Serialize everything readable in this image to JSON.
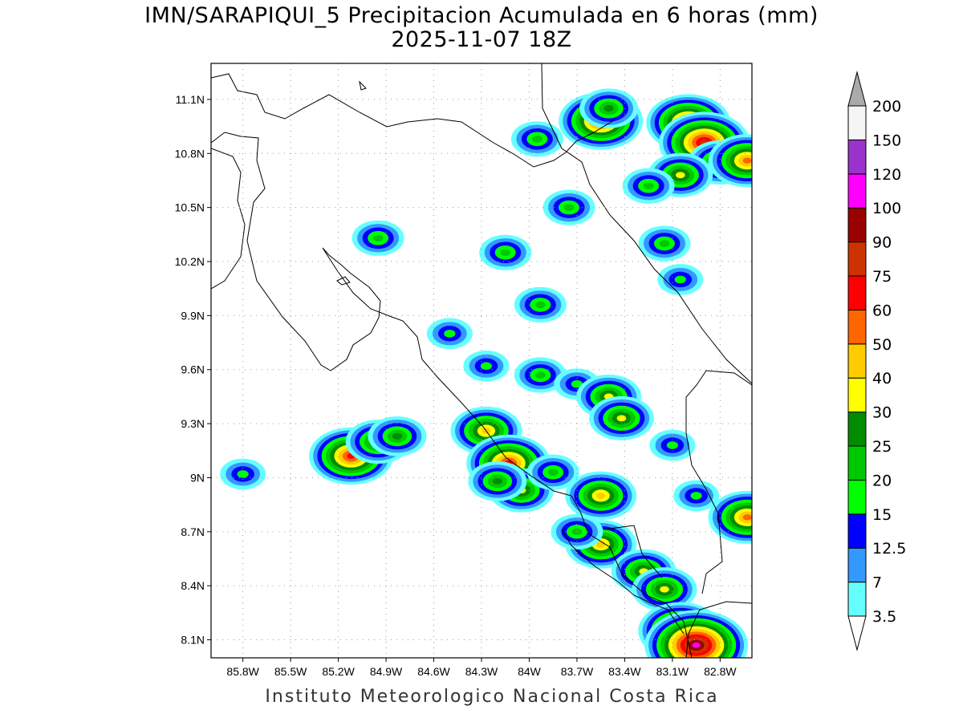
{
  "title": "IMN/SARAPIQUI_5 Precipitacion Acumulada en 6 horas (mm)",
  "subtitle": "2025-11-07 18Z",
  "credit": "Instituto Meteorologico Nacional Costa Rica",
  "map": {
    "lon_range": [
      -86.0,
      -82.6
    ],
    "lat_range": [
      8.0,
      11.3
    ],
    "lat_ticks": [
      {
        "v": 11.1,
        "label": "11.1N"
      },
      {
        "v": 10.8,
        "label": "10.8N"
      },
      {
        "v": 10.5,
        "label": "10.5N"
      },
      {
        "v": 10.2,
        "label": "10.2N"
      },
      {
        "v": 9.9,
        "label": "9.9N"
      },
      {
        "v": 9.6,
        "label": "9.6N"
      },
      {
        "v": 9.3,
        "label": "9.3N"
      },
      {
        "v": 9.0,
        "label": "9N"
      },
      {
        "v": 8.7,
        "label": "8.7N"
      },
      {
        "v": 8.4,
        "label": "8.4N"
      },
      {
        "v": 8.1,
        "label": "8.1N"
      }
    ],
    "lon_ticks": [
      {
        "v": -85.8,
        "label": "85.8W"
      },
      {
        "v": -85.5,
        "label": "85.5W"
      },
      {
        "v": -85.2,
        "label": "85.2W"
      },
      {
        "v": -84.9,
        "label": "84.9W"
      },
      {
        "v": -84.6,
        "label": "84.6W"
      },
      {
        "v": -84.3,
        "label": "84.3W"
      },
      {
        "v": -84.0,
        "label": "84W"
      },
      {
        "v": -83.7,
        "label": "83.7W"
      },
      {
        "v": -83.4,
        "label": "83.4W"
      },
      {
        "v": -83.1,
        "label": "83.1W"
      },
      {
        "v": -82.8,
        "label": "82.8W"
      }
    ],
    "grid": true
  },
  "legend": {
    "levels": [
      {
        "label": "3.5",
        "color": "#66ffff"
      },
      {
        "label": "7",
        "color": "#3399ff"
      },
      {
        "label": "12.5",
        "color": "#0000ff"
      },
      {
        "label": "15",
        "color": "#00ff00"
      },
      {
        "label": "20",
        "color": "#00c800"
      },
      {
        "label": "25",
        "color": "#008c00"
      },
      {
        "label": "30",
        "color": "#ffff00"
      },
      {
        "label": "40",
        "color": "#ffcc00"
      },
      {
        "label": "50",
        "color": "#ff6600"
      },
      {
        "label": "60",
        "color": "#ff0000"
      },
      {
        "label": "75",
        "color": "#cc3300"
      },
      {
        "label": "90",
        "color": "#990000"
      },
      {
        "label": "100",
        "color": "#ff00ff"
      },
      {
        "label": "120",
        "color": "#9933cc"
      },
      {
        "label": "150",
        "color": "#f5f5f5"
      },
      {
        "label": "200",
        "color": "#aaaaaa"
      }
    ]
  },
  "rain_cells": [
    {
      "lon": -83.55,
      "lat": 10.98,
      "mm": 60
    },
    {
      "lon": -83.5,
      "lat": 11.05,
      "mm": 25
    },
    {
      "lon": -83.0,
      "lat": 10.97,
      "mm": 60
    },
    {
      "lon": -82.9,
      "lat": 10.86,
      "mm": 75
    },
    {
      "lon": -82.8,
      "lat": 10.75,
      "mm": 30
    },
    {
      "lon": -82.63,
      "lat": 10.76,
      "mm": 50
    },
    {
      "lon": -83.05,
      "lat": 10.68,
      "mm": 30
    },
    {
      "lon": -83.25,
      "lat": 10.62,
      "mm": 20
    },
    {
      "lon": -83.15,
      "lat": 10.3,
      "mm": 20
    },
    {
      "lon": -83.05,
      "lat": 10.1,
      "mm": 15
    },
    {
      "lon": -83.95,
      "lat": 10.88,
      "mm": 20
    },
    {
      "lon": -83.75,
      "lat": 10.5,
      "mm": 20
    },
    {
      "lon": -84.95,
      "lat": 10.33,
      "mm": 20
    },
    {
      "lon": -84.15,
      "lat": 10.25,
      "mm": 20
    },
    {
      "lon": -83.93,
      "lat": 9.96,
      "mm": 20
    },
    {
      "lon": -84.5,
      "lat": 9.8,
      "mm": 15
    },
    {
      "lon": -84.27,
      "lat": 9.62,
      "mm": 15
    },
    {
      "lon": -83.93,
      "lat": 9.57,
      "mm": 20
    },
    {
      "lon": -83.7,
      "lat": 9.52,
      "mm": 15
    },
    {
      "lon": -83.5,
      "lat": 9.45,
      "mm": 30
    },
    {
      "lon": -83.42,
      "lat": 9.33,
      "mm": 30
    },
    {
      "lon": -83.1,
      "lat": 9.18,
      "mm": 15
    },
    {
      "lon": -85.12,
      "lat": 9.12,
      "mm": 60
    },
    {
      "lon": -84.95,
      "lat": 9.2,
      "mm": 30
    },
    {
      "lon": -84.83,
      "lat": 9.23,
      "mm": 25
    },
    {
      "lon": -85.8,
      "lat": 9.02,
      "mm": 15
    },
    {
      "lon": -84.27,
      "lat": 9.26,
      "mm": 40
    },
    {
      "lon": -84.13,
      "lat": 9.08,
      "mm": 60
    },
    {
      "lon": -84.05,
      "lat": 8.93,
      "mm": 30
    },
    {
      "lon": -84.2,
      "lat": 8.98,
      "mm": 25
    },
    {
      "lon": -83.85,
      "lat": 9.03,
      "mm": 20
    },
    {
      "lon": -83.55,
      "lat": 8.9,
      "mm": 40
    },
    {
      "lon": -83.55,
      "lat": 8.63,
      "mm": 40
    },
    {
      "lon": -83.7,
      "lat": 8.7,
      "mm": 20
    },
    {
      "lon": -83.28,
      "lat": 8.48,
      "mm": 30
    },
    {
      "lon": -83.15,
      "lat": 8.38,
      "mm": 30
    },
    {
      "lon": -83.05,
      "lat": 8.15,
      "mm": 60
    },
    {
      "lon": -82.95,
      "lat": 8.07,
      "mm": 100
    },
    {
      "lon": -82.63,
      "lat": 8.78,
      "mm": 50
    },
    {
      "lon": -82.95,
      "lat": 8.9,
      "mm": 15
    }
  ]
}
